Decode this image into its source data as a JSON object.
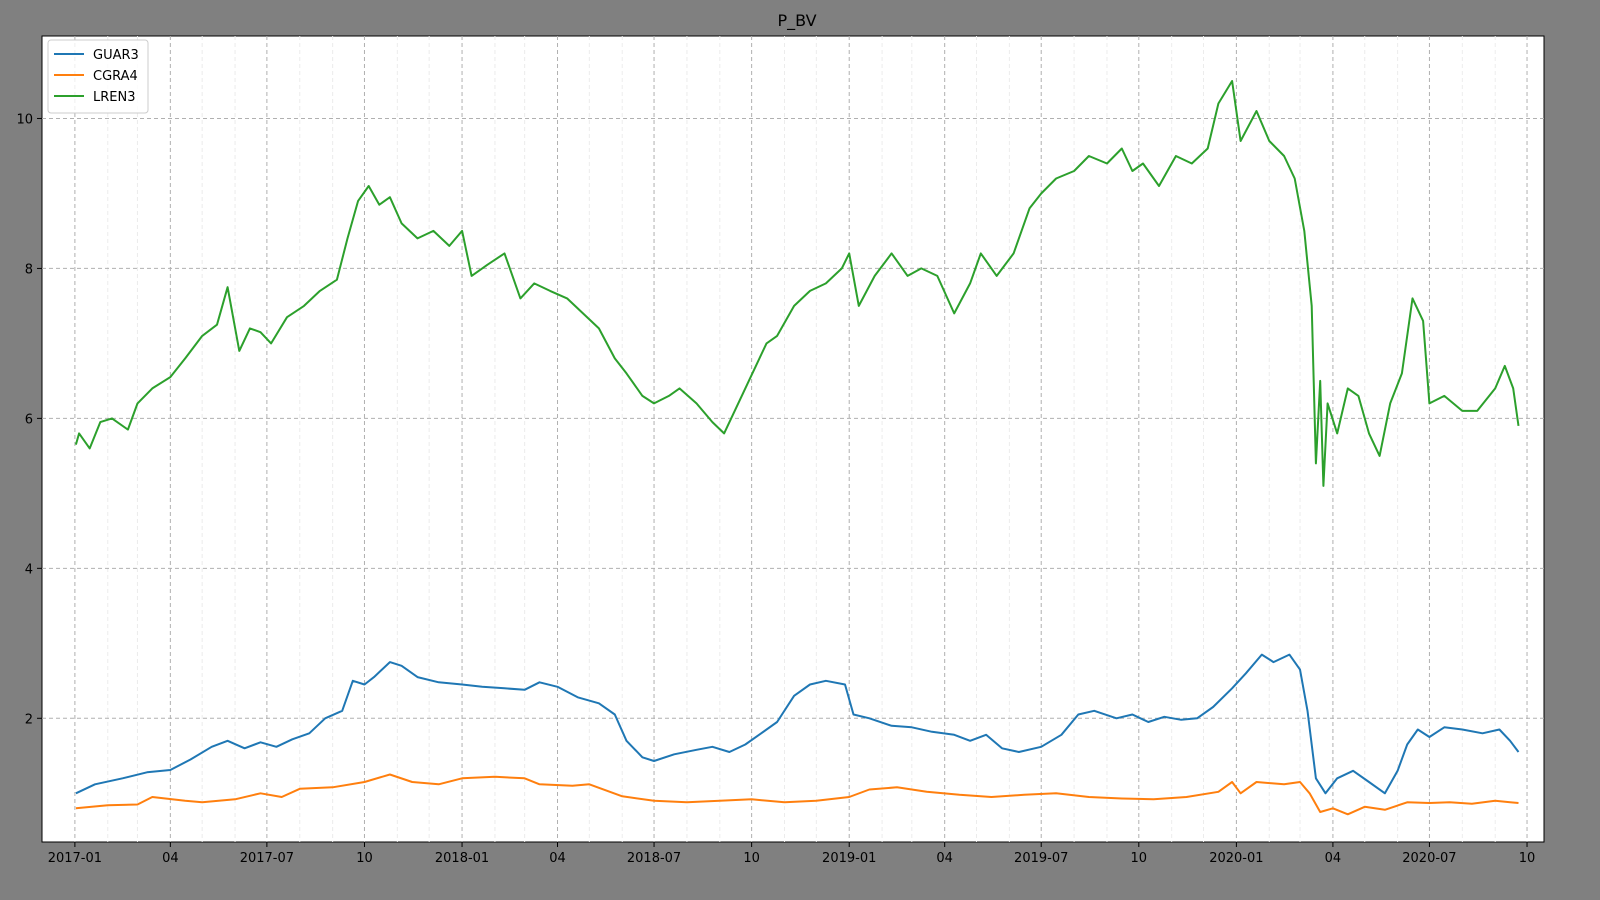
{
  "chart_data": {
    "type": "line",
    "title": "P_BV",
    "xlabel": "",
    "ylabel": "",
    "x_range": [
      "2016-12-01",
      "2020-10-17"
    ],
    "ylim": [
      0.35,
      11.1
    ],
    "grid": true,
    "legend": "top-left",
    "x_ticks": [
      {
        "date": "2017-01-01",
        "label": "2017-01"
      },
      {
        "date": "2017-04-01",
        "label": "04"
      },
      {
        "date": "2017-07-01",
        "label": "2017-07"
      },
      {
        "date": "2017-10-01",
        "label": "10"
      },
      {
        "date": "2018-01-01",
        "label": "2018-01"
      },
      {
        "date": "2018-04-01",
        "label": "04"
      },
      {
        "date": "2018-07-01",
        "label": "2018-07"
      },
      {
        "date": "2018-10-01",
        "label": "10"
      },
      {
        "date": "2019-01-01",
        "label": "2019-01"
      },
      {
        "date": "2019-04-01",
        "label": "04"
      },
      {
        "date": "2019-07-01",
        "label": "2019-07"
      },
      {
        "date": "2019-10-01",
        "label": "10"
      },
      {
        "date": "2020-01-01",
        "label": "2020-01"
      },
      {
        "date": "2020-04-01",
        "label": "04"
      },
      {
        "date": "2020-07-01",
        "label": "2020-07"
      },
      {
        "date": "2020-10-01",
        "label": "10"
      }
    ],
    "y_ticks": [
      2,
      4,
      6,
      8,
      10
    ],
    "series": [
      {
        "name": "GUAR3",
        "color": "#1f77b4",
        "points": [
          [
            "2017-01-02",
            1.0
          ],
          [
            "2017-01-20",
            1.12
          ],
          [
            "2017-02-15",
            1.2
          ],
          [
            "2017-03-10",
            1.28
          ],
          [
            "2017-04-01",
            1.31
          ],
          [
            "2017-04-20",
            1.45
          ],
          [
            "2017-05-10",
            1.62
          ],
          [
            "2017-05-25",
            1.7
          ],
          [
            "2017-06-10",
            1.6
          ],
          [
            "2017-06-25",
            1.68
          ],
          [
            "2017-07-10",
            1.62
          ],
          [
            "2017-07-25",
            1.72
          ],
          [
            "2017-08-10",
            1.8
          ],
          [
            "2017-08-25",
            2.0
          ],
          [
            "2017-09-10",
            2.1
          ],
          [
            "2017-09-20",
            2.5
          ],
          [
            "2017-10-01",
            2.45
          ],
          [
            "2017-10-10",
            2.55
          ],
          [
            "2017-10-25",
            2.75
          ],
          [
            "2017-11-05",
            2.7
          ],
          [
            "2017-11-20",
            2.55
          ],
          [
            "2017-12-10",
            2.48
          ],
          [
            "2018-01-01",
            2.45
          ],
          [
            "2018-01-20",
            2.42
          ],
          [
            "2018-02-10",
            2.4
          ],
          [
            "2018-03-01",
            2.38
          ],
          [
            "2018-03-15",
            2.48
          ],
          [
            "2018-04-01",
            2.42
          ],
          [
            "2018-04-20",
            2.28
          ],
          [
            "2018-05-10",
            2.2
          ],
          [
            "2018-05-25",
            2.05
          ],
          [
            "2018-06-05",
            1.7
          ],
          [
            "2018-06-20",
            1.48
          ],
          [
            "2018-07-01",
            1.43
          ],
          [
            "2018-07-20",
            1.52
          ],
          [
            "2018-08-10",
            1.58
          ],
          [
            "2018-08-25",
            1.62
          ],
          [
            "2018-09-10",
            1.55
          ],
          [
            "2018-09-25",
            1.65
          ],
          [
            "2018-10-10",
            1.8
          ],
          [
            "2018-10-25",
            1.95
          ],
          [
            "2018-11-10",
            2.3
          ],
          [
            "2018-11-25",
            2.45
          ],
          [
            "2018-12-10",
            2.5
          ],
          [
            "2018-12-28",
            2.45
          ],
          [
            "2019-01-05",
            2.05
          ],
          [
            "2019-01-20",
            2.0
          ],
          [
            "2019-02-10",
            1.9
          ],
          [
            "2019-03-01",
            1.88
          ],
          [
            "2019-03-20",
            1.82
          ],
          [
            "2019-04-10",
            1.78
          ],
          [
            "2019-04-25",
            1.7
          ],
          [
            "2019-05-10",
            1.78
          ],
          [
            "2019-05-25",
            1.6
          ],
          [
            "2019-06-10",
            1.55
          ],
          [
            "2019-07-01",
            1.62
          ],
          [
            "2019-07-20",
            1.78
          ],
          [
            "2019-08-05",
            2.05
          ],
          [
            "2019-08-20",
            2.1
          ],
          [
            "2019-09-10",
            2.0
          ],
          [
            "2019-09-25",
            2.05
          ],
          [
            "2019-10-10",
            1.95
          ],
          [
            "2019-10-25",
            2.02
          ],
          [
            "2019-11-10",
            1.98
          ],
          [
            "2019-11-25",
            2.0
          ],
          [
            "2019-12-10",
            2.15
          ],
          [
            "2019-12-28",
            2.4
          ],
          [
            "2020-01-10",
            2.6
          ],
          [
            "2020-01-25",
            2.85
          ],
          [
            "2020-02-05",
            2.75
          ],
          [
            "2020-02-20",
            2.85
          ],
          [
            "2020-03-01",
            2.65
          ],
          [
            "2020-03-08",
            2.1
          ],
          [
            "2020-03-16",
            1.2
          ],
          [
            "2020-03-25",
            1.0
          ],
          [
            "2020-04-05",
            1.2
          ],
          [
            "2020-04-20",
            1.3
          ],
          [
            "2020-05-05",
            1.15
          ],
          [
            "2020-05-20",
            1.0
          ],
          [
            "2020-06-01",
            1.3
          ],
          [
            "2020-06-10",
            1.65
          ],
          [
            "2020-06-20",
            1.85
          ],
          [
            "2020-07-01",
            1.75
          ],
          [
            "2020-07-15",
            1.88
          ],
          [
            "2020-08-01",
            1.85
          ],
          [
            "2020-08-20",
            1.8
          ],
          [
            "2020-09-05",
            1.85
          ],
          [
            "2020-09-15",
            1.7
          ],
          [
            "2020-09-23",
            1.55
          ]
        ]
      },
      {
        "name": "CGRA4",
        "color": "#ff7f0e",
        "points": [
          [
            "2017-01-02",
            0.8
          ],
          [
            "2017-02-01",
            0.84
          ],
          [
            "2017-03-01",
            0.85
          ],
          [
            "2017-03-15",
            0.95
          ],
          [
            "2017-04-15",
            0.9
          ],
          [
            "2017-05-01",
            0.88
          ],
          [
            "2017-06-01",
            0.92
          ],
          [
            "2017-06-25",
            1.0
          ],
          [
            "2017-07-15",
            0.95
          ],
          [
            "2017-08-01",
            1.06
          ],
          [
            "2017-09-01",
            1.08
          ],
          [
            "2017-10-01",
            1.15
          ],
          [
            "2017-10-25",
            1.25
          ],
          [
            "2017-11-15",
            1.15
          ],
          [
            "2017-12-10",
            1.12
          ],
          [
            "2018-01-01",
            1.2
          ],
          [
            "2018-02-01",
            1.22
          ],
          [
            "2018-03-01",
            1.2
          ],
          [
            "2018-03-15",
            1.12
          ],
          [
            "2018-04-15",
            1.1
          ],
          [
            "2018-05-01",
            1.12
          ],
          [
            "2018-06-01",
            0.96
          ],
          [
            "2018-07-01",
            0.9
          ],
          [
            "2018-08-01",
            0.88
          ],
          [
            "2018-09-01",
            0.9
          ],
          [
            "2018-10-01",
            0.92
          ],
          [
            "2018-11-01",
            0.88
          ],
          [
            "2018-12-01",
            0.9
          ],
          [
            "2019-01-01",
            0.95
          ],
          [
            "2019-01-20",
            1.05
          ],
          [
            "2019-02-15",
            1.08
          ],
          [
            "2019-03-15",
            1.02
          ],
          [
            "2019-04-15",
            0.98
          ],
          [
            "2019-05-15",
            0.95
          ],
          [
            "2019-06-15",
            0.98
          ],
          [
            "2019-07-15",
            1.0
          ],
          [
            "2019-08-15",
            0.95
          ],
          [
            "2019-09-15",
            0.93
          ],
          [
            "2019-10-15",
            0.92
          ],
          [
            "2019-11-15",
            0.95
          ],
          [
            "2019-12-15",
            1.02
          ],
          [
            "2019-12-28",
            1.15
          ],
          [
            "2020-01-05",
            1.0
          ],
          [
            "2020-01-20",
            1.15
          ],
          [
            "2020-02-15",
            1.12
          ],
          [
            "2020-03-01",
            1.15
          ],
          [
            "2020-03-10",
            1.0
          ],
          [
            "2020-03-20",
            0.75
          ],
          [
            "2020-04-01",
            0.8
          ],
          [
            "2020-04-15",
            0.72
          ],
          [
            "2020-05-01",
            0.82
          ],
          [
            "2020-05-20",
            0.78
          ],
          [
            "2020-06-10",
            0.88
          ],
          [
            "2020-07-01",
            0.87
          ],
          [
            "2020-07-20",
            0.88
          ],
          [
            "2020-08-10",
            0.86
          ],
          [
            "2020-09-01",
            0.9
          ],
          [
            "2020-09-15",
            0.88
          ],
          [
            "2020-09-23",
            0.87
          ]
        ]
      },
      {
        "name": "LREN3",
        "color": "#2ca02c",
        "points": [
          [
            "2017-01-02",
            5.65
          ],
          [
            "2017-01-05",
            5.8
          ],
          [
            "2017-01-15",
            5.6
          ],
          [
            "2017-01-25",
            5.95
          ],
          [
            "2017-02-05",
            6.0
          ],
          [
            "2017-02-20",
            5.85
          ],
          [
            "2017-03-01",
            6.2
          ],
          [
            "2017-03-15",
            6.4
          ],
          [
            "2017-04-01",
            6.55
          ],
          [
            "2017-04-15",
            6.8
          ],
          [
            "2017-05-01",
            7.1
          ],
          [
            "2017-05-15",
            7.25
          ],
          [
            "2017-05-25",
            7.75
          ],
          [
            "2017-06-05",
            6.9
          ],
          [
            "2017-06-15",
            7.2
          ],
          [
            "2017-06-25",
            7.15
          ],
          [
            "2017-07-05",
            7.0
          ],
          [
            "2017-07-20",
            7.35
          ],
          [
            "2017-08-05",
            7.5
          ],
          [
            "2017-08-20",
            7.7
          ],
          [
            "2017-09-05",
            7.85
          ],
          [
            "2017-09-15",
            8.4
          ],
          [
            "2017-09-25",
            8.9
          ],
          [
            "2017-10-05",
            9.1
          ],
          [
            "2017-10-15",
            8.85
          ],
          [
            "2017-10-25",
            8.95
          ],
          [
            "2017-11-05",
            8.6
          ],
          [
            "2017-11-20",
            8.4
          ],
          [
            "2017-12-05",
            8.5
          ],
          [
            "2017-12-20",
            8.3
          ],
          [
            "2018-01-01",
            8.5
          ],
          [
            "2018-01-10",
            7.9
          ],
          [
            "2018-01-25",
            8.05
          ],
          [
            "2018-02-10",
            8.2
          ],
          [
            "2018-02-25",
            7.6
          ],
          [
            "2018-03-10",
            7.8
          ],
          [
            "2018-03-25",
            7.7
          ],
          [
            "2018-04-10",
            7.6
          ],
          [
            "2018-04-25",
            7.4
          ],
          [
            "2018-05-10",
            7.2
          ],
          [
            "2018-05-25",
            6.8
          ],
          [
            "2018-06-05",
            6.6
          ],
          [
            "2018-06-20",
            6.3
          ],
          [
            "2018-07-01",
            6.2
          ],
          [
            "2018-07-15",
            6.3
          ],
          [
            "2018-07-25",
            6.4
          ],
          [
            "2018-08-10",
            6.2
          ],
          [
            "2018-08-25",
            5.95
          ],
          [
            "2018-09-05",
            5.8
          ],
          [
            "2018-09-15",
            6.1
          ],
          [
            "2018-09-25",
            6.4
          ],
          [
            "2018-10-05",
            6.7
          ],
          [
            "2018-10-15",
            7.0
          ],
          [
            "2018-10-25",
            7.1
          ],
          [
            "2018-11-10",
            7.5
          ],
          [
            "2018-11-25",
            7.7
          ],
          [
            "2018-12-10",
            7.8
          ],
          [
            "2018-12-25",
            8.0
          ],
          [
            "2019-01-01",
            8.2
          ],
          [
            "2019-01-10",
            7.5
          ],
          [
            "2019-01-25",
            7.9
          ],
          [
            "2019-02-10",
            8.2
          ],
          [
            "2019-02-25",
            7.9
          ],
          [
            "2019-03-10",
            8.0
          ],
          [
            "2019-03-25",
            7.9
          ],
          [
            "2019-04-10",
            7.4
          ],
          [
            "2019-04-25",
            7.8
          ],
          [
            "2019-05-05",
            8.2
          ],
          [
            "2019-05-20",
            7.9
          ],
          [
            "2019-06-05",
            8.2
          ],
          [
            "2019-06-20",
            8.8
          ],
          [
            "2019-07-01",
            9.0
          ],
          [
            "2019-07-15",
            9.2
          ],
          [
            "2019-08-01",
            9.3
          ],
          [
            "2019-08-15",
            9.5
          ],
          [
            "2019-09-01",
            9.4
          ],
          [
            "2019-09-15",
            9.6
          ],
          [
            "2019-09-25",
            9.3
          ],
          [
            "2019-10-05",
            9.4
          ],
          [
            "2019-10-20",
            9.1
          ],
          [
            "2019-11-05",
            9.5
          ],
          [
            "2019-11-20",
            9.4
          ],
          [
            "2019-12-05",
            9.6
          ],
          [
            "2019-12-15",
            10.2
          ],
          [
            "2019-12-28",
            10.5
          ],
          [
            "2020-01-05",
            9.7
          ],
          [
            "2020-01-20",
            10.1
          ],
          [
            "2020-02-01",
            9.7
          ],
          [
            "2020-02-15",
            9.5
          ],
          [
            "2020-02-25",
            9.2
          ],
          [
            "2020-03-05",
            8.5
          ],
          [
            "2020-03-12",
            7.5
          ],
          [
            "2020-03-16",
            5.4
          ],
          [
            "2020-03-20",
            6.5
          ],
          [
            "2020-03-23",
            5.1
          ],
          [
            "2020-03-27",
            6.2
          ],
          [
            "2020-04-05",
            5.8
          ],
          [
            "2020-04-15",
            6.4
          ],
          [
            "2020-04-25",
            6.3
          ],
          [
            "2020-05-05",
            5.8
          ],
          [
            "2020-05-15",
            5.5
          ],
          [
            "2020-05-25",
            6.2
          ],
          [
            "2020-06-05",
            6.6
          ],
          [
            "2020-06-15",
            7.6
          ],
          [
            "2020-06-25",
            7.3
          ],
          [
            "2020-07-01",
            6.2
          ],
          [
            "2020-07-15",
            6.3
          ],
          [
            "2020-08-01",
            6.1
          ],
          [
            "2020-08-15",
            6.1
          ],
          [
            "2020-09-01",
            6.4
          ],
          [
            "2020-09-10",
            6.7
          ],
          [
            "2020-09-18",
            6.4
          ],
          [
            "2020-09-23",
            5.9
          ]
        ]
      }
    ]
  }
}
